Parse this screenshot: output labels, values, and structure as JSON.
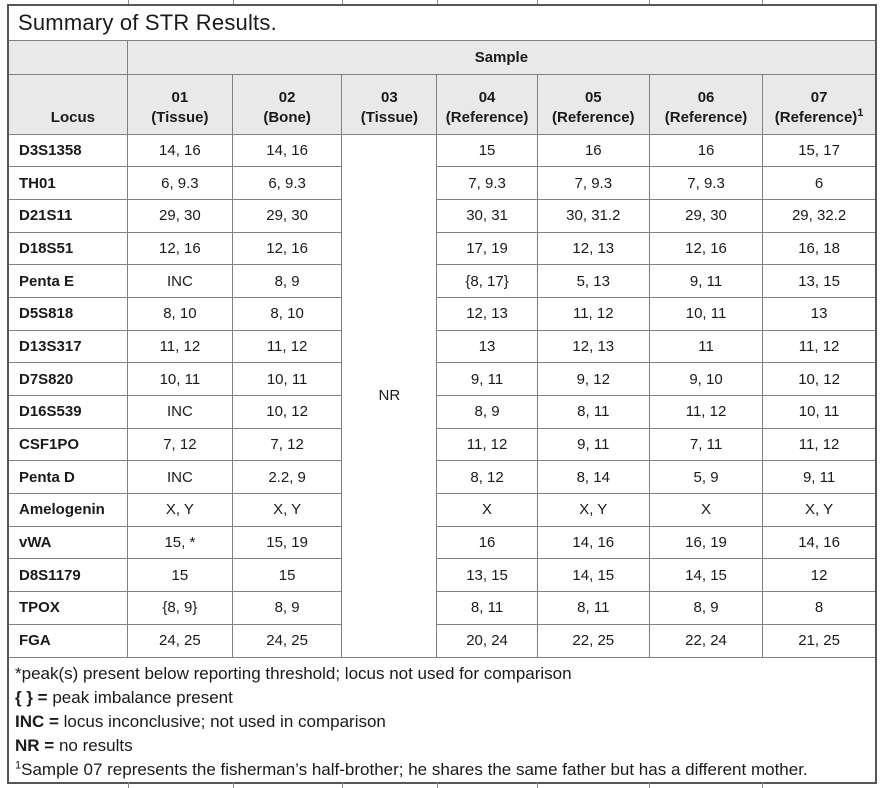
{
  "title": "Summary of STR Results.",
  "table": {
    "sample_header": "Sample",
    "locus_header": "Locus",
    "columns": [
      {
        "num": "01",
        "type": "(Tissue)",
        "sup": ""
      },
      {
        "num": "02",
        "type": "(Bone)",
        "sup": ""
      },
      {
        "num": "03",
        "type": "(Tissue)",
        "sup": ""
      },
      {
        "num": "04",
        "type": "(Reference)",
        "sup": ""
      },
      {
        "num": "05",
        "type": "(Reference)",
        "sup": ""
      },
      {
        "num": "06",
        "type": "(Reference)",
        "sup": ""
      },
      {
        "num": "07",
        "type": "(Reference)",
        "sup": "1"
      }
    ],
    "nr_value": "NR",
    "rows": [
      {
        "locus": "D3S1358",
        "values": [
          "14, 16",
          "14, 16",
          "15",
          "16",
          "16",
          "15, 17"
        ]
      },
      {
        "locus": "TH01",
        "values": [
          "6, 9.3",
          "6, 9.3",
          "7, 9.3",
          "7, 9.3",
          "7, 9.3",
          "6"
        ]
      },
      {
        "locus": "D21S11",
        "values": [
          "29, 30",
          "29, 30",
          "30, 31",
          "30, 31.2",
          "29, 30",
          "29, 32.2"
        ]
      },
      {
        "locus": "D18S51",
        "values": [
          "12, 16",
          "12, 16",
          "17, 19",
          "12, 13",
          "12, 16",
          "16, 18"
        ]
      },
      {
        "locus": "Penta E",
        "values": [
          "INC",
          "8, 9",
          "{8, 17}",
          "5, 13",
          "9, 11",
          "13, 15"
        ]
      },
      {
        "locus": "D5S818",
        "values": [
          "8, 10",
          "8, 10",
          "12, 13",
          "11, 12",
          "10, 11",
          "13"
        ]
      },
      {
        "locus": "D13S317",
        "values": [
          "11, 12",
          "11, 12",
          "13",
          "12, 13",
          "11",
          "11, 12"
        ]
      },
      {
        "locus": "D7S820",
        "values": [
          "10, 11",
          "10, 11",
          "9, 11",
          "9, 12",
          "9, 10",
          "10, 12"
        ]
      },
      {
        "locus": "D16S539",
        "values": [
          "INC",
          "10, 12",
          "8, 9",
          "8, 11",
          "11, 12",
          "10, 11"
        ]
      },
      {
        "locus": "CSF1PO",
        "values": [
          "7, 12",
          "7, 12",
          "11, 12",
          "9, 11",
          "7, 11",
          "11, 12"
        ]
      },
      {
        "locus": "Penta D",
        "values": [
          "INC",
          "2.2, 9",
          "8, 12",
          "8, 14",
          "5, 9",
          "9, 11"
        ]
      },
      {
        "locus": "Amelogenin",
        "values": [
          "X, Y",
          "X, Y",
          "X",
          "X, Y",
          "X",
          "X, Y"
        ]
      },
      {
        "locus": "vWA",
        "values": [
          "15, *",
          "15, 19",
          "16",
          "14, 16",
          "16, 19",
          "14, 16"
        ]
      },
      {
        "locus": "D8S1179",
        "values": [
          "15",
          "15",
          "13, 15",
          "14, 15",
          "14, 15",
          "12"
        ]
      },
      {
        "locus": "TPOX",
        "values": [
          "{8, 9}",
          "8, 9",
          "8, 11",
          "8, 11",
          "8, 9",
          "8"
        ]
      },
      {
        "locus": "FGA",
        "values": [
          "24, 25",
          "24, 25",
          "20, 24",
          "22, 25",
          "22, 24",
          "21, 25"
        ]
      }
    ]
  },
  "footnotes": [
    {
      "sup": "",
      "bold": "",
      "text": "*peak(s) present below reporting threshold; locus not used for comparison"
    },
    {
      "sup": "",
      "bold": "{ } = ",
      "text": "peak imbalance present"
    },
    {
      "sup": "",
      "bold": "INC = ",
      "text": "locus inconclusive; not used in comparison"
    },
    {
      "sup": "",
      "bold": "NR = ",
      "text": "no results"
    },
    {
      "sup": "1",
      "bold": "",
      "text": "Sample 07 represents the fisherman’s half-brother; he shares the same father but has a different mother."
    }
  ],
  "colors": {
    "header_fill": "#e9e9e9",
    "grid_line": "#808080",
    "outer_border": "#565656"
  }
}
